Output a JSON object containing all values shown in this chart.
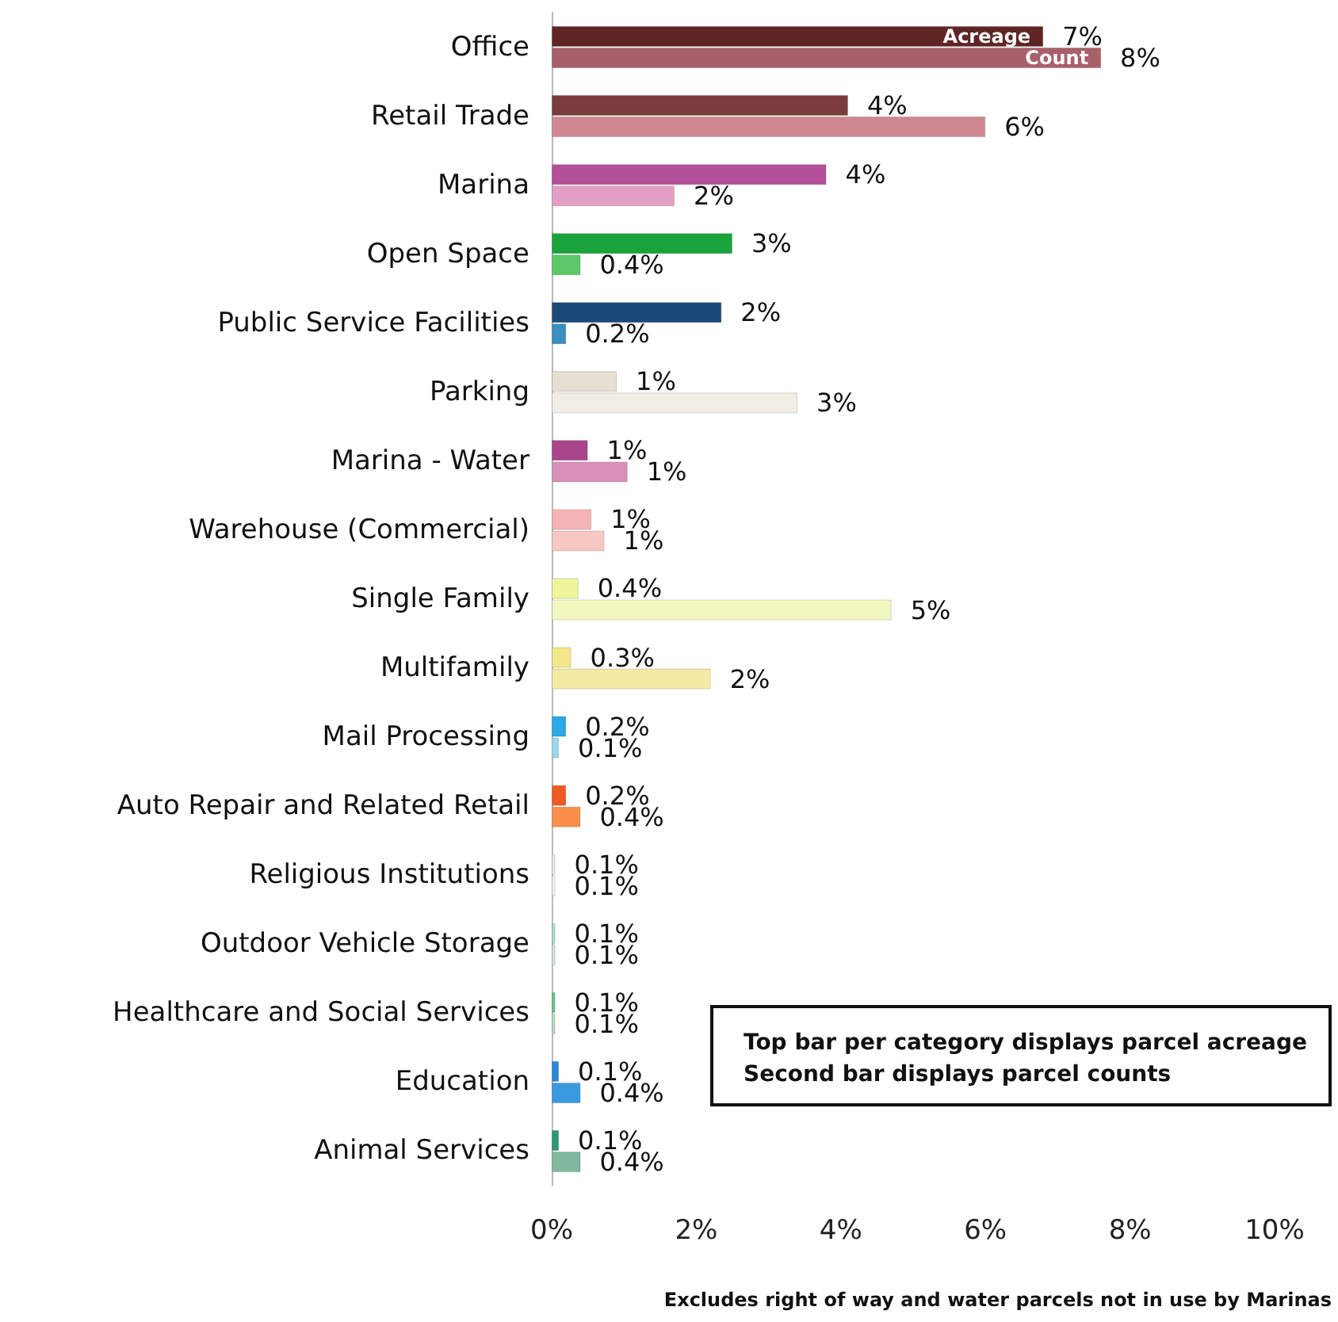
{
  "chart_data": {
    "type": "bar",
    "orientation": "horizontal",
    "categories": [
      "Office",
      "Retail Trade",
      "Marina",
      "Open Space",
      "Public Service Facilities",
      "Parking",
      "Marina - Water",
      "Warehouse (Commercial)",
      "Single Family",
      "Multifamily",
      "Mail Processing",
      "Auto Repair and Related Retail",
      "Religious Institutions",
      "Outdoor Vehicle Storage",
      "Healthcare and Social Services",
      "Education",
      "Animal Services"
    ],
    "series": [
      {
        "name": "Acreage",
        "values": [
          6.8,
          4.1,
          3.8,
          2.5,
          2.35,
          0.9,
          0.5,
          0.55,
          0.37,
          0.27,
          0.2,
          0.2,
          0.05,
          0.05,
          0.05,
          0.1,
          0.1
        ],
        "value_labels": [
          "7%",
          "4%",
          "4%",
          "3%",
          "2%",
          "1%",
          "1%",
          "1%",
          "0.4%",
          "0.3%",
          "0.2%",
          "0.2%",
          "0.1%",
          "0.1%",
          "0.1%",
          "0.1%",
          "0.1%"
        ],
        "colors": [
          "#5e2524",
          "#7a3c3c",
          "#b5509a",
          "#1aa33a",
          "#1c4a78",
          "#e6dfd2",
          "#a9458a",
          "#f4b4b4",
          "#eef59a",
          "#f3e88a",
          "#2aa8e8",
          "#f05a24",
          "#e8e8e8",
          "#a8dcc0",
          "#6cc08c",
          "#2a88d8",
          "#2a9a70"
        ]
      },
      {
        "name": "Count",
        "values": [
          7.6,
          6.0,
          1.7,
          0.4,
          0.2,
          3.4,
          1.05,
          0.73,
          4.7,
          2.2,
          0.1,
          0.4,
          0.05,
          0.05,
          0.05,
          0.4,
          0.4
        ],
        "value_labels": [
          "8%",
          "6%",
          "2%",
          "0.4%",
          "0.2%",
          "3%",
          "1%",
          "1%",
          "5%",
          "2%",
          "0.1%",
          "0.4%",
          "0.1%",
          "0.1%",
          "0.1%",
          "0.4%",
          "0.4%"
        ],
        "colors": [
          "#a8606a",
          "#d08890",
          "#e4a0c4",
          "#5cc86a",
          "#3a8ec0",
          "#f2eee6",
          "#d890b8",
          "#f8c8c4",
          "#f2f8c0",
          "#f4eaa4",
          "#9ad8f0",
          "#f8904a",
          "#f0f0f0",
          "#c8e8d8",
          "#b0dcc0",
          "#3a9ae0",
          "#80b8a0"
        ]
      }
    ],
    "xlim": [
      0,
      10
    ],
    "xticks": [
      {
        "value": 0,
        "label": "0%"
      },
      {
        "value": 2,
        "label": "2%"
      },
      {
        "value": 4,
        "label": "4%"
      },
      {
        "value": 6,
        "label": "6%"
      },
      {
        "value": 8,
        "label": "8%"
      },
      {
        "value": 10,
        "label": "10%"
      }
    ],
    "grid": false,
    "annotations": [
      "Top bar per category displays parcel acreage\nSecond bar displays parcel counts",
      "Excludes right of way and water parcels not in use by Marinas"
    ]
  }
}
